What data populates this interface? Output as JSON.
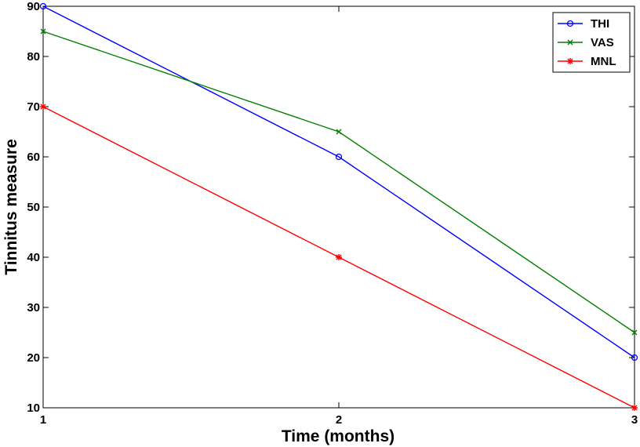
{
  "chart_data": {
    "type": "line",
    "title": "",
    "xlabel": "Time (months)",
    "ylabel": "Tinnitus measure",
    "x": [
      1,
      2,
      3
    ],
    "xticks": [
      "1",
      "2",
      "3"
    ],
    "yticks": [
      "10",
      "20",
      "30",
      "40",
      "50",
      "60",
      "70",
      "80",
      "90"
    ],
    "xlim": [
      1,
      3
    ],
    "ylim": [
      10,
      90
    ],
    "grid": false,
    "legend_position": "top-right",
    "series": [
      {
        "name": "THI",
        "values": [
          90,
          60,
          20
        ],
        "color": "#0000ff",
        "marker": "circle"
      },
      {
        "name": "VAS",
        "values": [
          85,
          65,
          25
        ],
        "color": "#008000",
        "marker": "x"
      },
      {
        "name": "MNL",
        "values": [
          70,
          40,
          10
        ],
        "color": "#ff0000",
        "marker": "star"
      }
    ]
  }
}
